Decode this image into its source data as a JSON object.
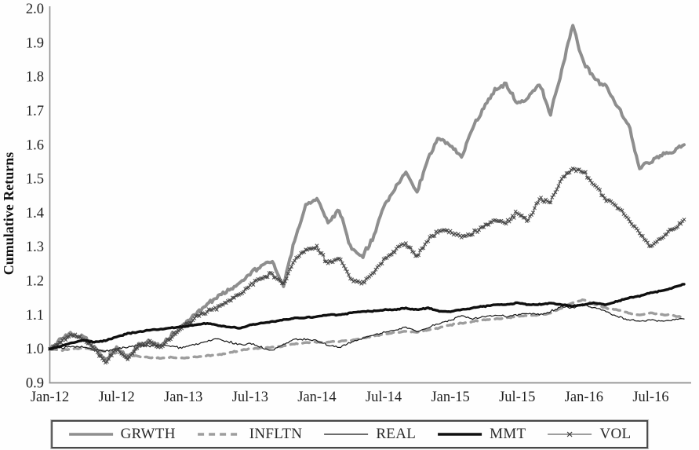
{
  "chart_data": {
    "type": "line",
    "title": "",
    "xlabel": "",
    "ylabel": "Cumulative Returns",
    "ylim": [
      0.9,
      2.0
    ],
    "ytick_step": 0.1,
    "yticks": [
      "0.9",
      "1.0",
      "1.1",
      "1.2",
      "1.3",
      "1.4",
      "1.5",
      "1.6",
      "1.7",
      "1.8",
      "1.9",
      "2.0"
    ],
    "xticklabels": [
      "Jan-12",
      "Jul-12",
      "Jan-13",
      "Jul-13",
      "Jan-14",
      "Jul-14",
      "Jan-15",
      "Jul-15",
      "Jan-16",
      "Jul-16"
    ],
    "x_monthly_start": "Jan-12",
    "x_monthly_end": "Oct-16",
    "n_months": 58,
    "grid": false,
    "legend_position": "bottom",
    "axis_color": "#8f8f8f",
    "text_color": "#1f1f1f",
    "series": [
      {
        "name": "GRWTH",
        "color": "#8e8e8e",
        "width": 4,
        "jitter": 0.01,
        "values": [
          1.0,
          1.028,
          1.045,
          1.035,
          1.005,
          0.965,
          1.005,
          0.972,
          1.01,
          1.022,
          1.008,
          1.042,
          1.07,
          1.1,
          1.13,
          1.15,
          1.17,
          1.19,
          1.22,
          1.245,
          1.26,
          1.185,
          1.32,
          1.42,
          1.445,
          1.37,
          1.41,
          1.3,
          1.27,
          1.32,
          1.42,
          1.47,
          1.52,
          1.46,
          1.56,
          1.62,
          1.6,
          1.56,
          1.65,
          1.71,
          1.76,
          1.78,
          1.72,
          1.74,
          1.78,
          1.69,
          1.82,
          1.95,
          1.84,
          1.79,
          1.77,
          1.71,
          1.66,
          1.53,
          1.55,
          1.57,
          1.58,
          1.6
        ]
      },
      {
        "name": "INFLTN",
        "color": "#9d9d9d",
        "width": 3.4,
        "dash": "9 7",
        "jitter": 0.0025,
        "values": [
          1.0,
          0.996,
          1.0,
          1.003,
          0.998,
          0.992,
          0.988,
          0.982,
          0.978,
          0.975,
          0.972,
          0.975,
          0.972,
          0.976,
          0.98,
          0.982,
          0.988,
          0.994,
          1.0,
          1.002,
          1.005,
          1.008,
          1.015,
          1.018,
          1.02,
          1.02,
          1.022,
          1.025,
          1.03,
          1.038,
          1.042,
          1.048,
          1.052,
          1.048,
          1.055,
          1.062,
          1.07,
          1.075,
          1.08,
          1.085,
          1.088,
          1.09,
          1.095,
          1.098,
          1.1,
          1.105,
          1.12,
          1.135,
          1.145,
          1.13,
          1.12,
          1.115,
          1.105,
          1.1,
          1.105,
          1.1,
          1.098,
          1.092
        ]
      },
      {
        "name": "REAL",
        "color": "#161616",
        "width": 1.2,
        "jitter": 0.0045,
        "values": [
          1.0,
          1.003,
          1.008,
          1.005,
          0.998,
          0.992,
          1.0,
          1.005,
          1.012,
          1.008,
          1.01,
          1.008,
          1.003,
          1.012,
          1.022,
          1.03,
          1.022,
          1.012,
          1.016,
          1.005,
          0.995,
          1.012,
          1.03,
          1.028,
          1.025,
          1.01,
          1.005,
          1.018,
          1.03,
          1.04,
          1.048,
          1.055,
          1.065,
          1.05,
          1.062,
          1.075,
          1.085,
          1.098,
          1.088,
          1.095,
          1.1,
          1.095,
          1.1,
          1.105,
          1.1,
          1.11,
          1.125,
          1.12,
          1.13,
          1.12,
          1.11,
          1.095,
          1.085,
          1.082,
          1.085,
          1.08,
          1.085,
          1.088
        ]
      },
      {
        "name": "MMT",
        "color": "#0f0f0f",
        "width": 3.4,
        "jitter": 0.0022,
        "values": [
          1.0,
          1.008,
          1.018,
          1.025,
          1.02,
          1.025,
          1.035,
          1.045,
          1.05,
          1.055,
          1.058,
          1.062,
          1.065,
          1.07,
          1.075,
          1.07,
          1.065,
          1.06,
          1.07,
          1.075,
          1.08,
          1.085,
          1.09,
          1.092,
          1.095,
          1.1,
          1.1,
          1.105,
          1.11,
          1.11,
          1.115,
          1.115,
          1.12,
          1.115,
          1.12,
          1.11,
          1.11,
          1.115,
          1.12,
          1.125,
          1.13,
          1.13,
          1.135,
          1.13,
          1.13,
          1.135,
          1.13,
          1.125,
          1.13,
          1.135,
          1.13,
          1.14,
          1.15,
          1.155,
          1.165,
          1.17,
          1.18,
          1.19
        ]
      },
      {
        "name": "VOL",
        "color": "#7f7f7f",
        "width": 1.6,
        "marker": "x",
        "marker_color": "#3c3c3c",
        "jitter": 0.009,
        "values": [
          1.0,
          1.022,
          1.04,
          1.03,
          1.0,
          0.962,
          1.0,
          0.97,
          1.008,
          1.018,
          1.005,
          1.038,
          1.065,
          1.09,
          1.11,
          1.12,
          1.14,
          1.16,
          1.185,
          1.21,
          1.22,
          1.19,
          1.26,
          1.29,
          1.3,
          1.25,
          1.27,
          1.21,
          1.19,
          1.22,
          1.26,
          1.29,
          1.31,
          1.27,
          1.32,
          1.35,
          1.345,
          1.33,
          1.34,
          1.36,
          1.38,
          1.37,
          1.4,
          1.38,
          1.44,
          1.43,
          1.5,
          1.53,
          1.52,
          1.48,
          1.44,
          1.42,
          1.38,
          1.34,
          1.3,
          1.33,
          1.35,
          1.38
        ]
      }
    ]
  }
}
